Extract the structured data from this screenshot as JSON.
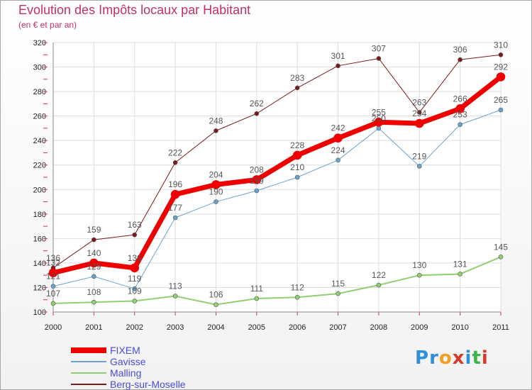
{
  "title": "Evolution des Impôts locaux par Habitant",
  "subtitle": "(en € et par an)",
  "logo": {
    "letters": [
      "P",
      "r",
      "o",
      "x",
      "i",
      "t",
      "i"
    ],
    "colors": [
      "#2f8fd8",
      "#2f8fd8",
      "#f0a020",
      "#d83a2a",
      "#2f8fd8",
      "#3ab54a",
      "#d83a2a"
    ]
  },
  "chart_data": {
    "type": "line",
    "title": "Evolution des Impôts locaux par Habitant",
    "subtitle": "(en € et par an)",
    "xlabel": "",
    "ylabel": "",
    "categories": [
      "2000",
      "2001",
      "2002",
      "2003",
      "2004",
      "2005",
      "2006",
      "2007",
      "2008",
      "2009",
      "2010",
      "2011"
    ],
    "ylim": [
      100,
      320
    ],
    "yticks": [
      100,
      120,
      140,
      160,
      180,
      200,
      220,
      240,
      260,
      280,
      300,
      320
    ],
    "grid": true,
    "legend_position": "bottom-left",
    "series": [
      {
        "name": "Berg-sur-Moselle",
        "color": "#7a1a1a",
        "width": 1,
        "marker": 3,
        "values": [
          136,
          159,
          163,
          222,
          248,
          262,
          283,
          301,
          307,
          263,
          306,
          310
        ]
      },
      {
        "name": "Gavisse",
        "color": "#6aa3cc",
        "width": 1,
        "marker": 3,
        "values": [
          121,
          129,
          119,
          177,
          190,
          199,
          210,
          224,
          250,
          219,
          253,
          265
        ]
      },
      {
        "name": "Malling",
        "color": "#90d070",
        "width": 2,
        "marker": 3,
        "values": [
          107,
          108,
          109,
          113,
          106,
          111,
          112,
          115,
          122,
          130,
          131,
          145
        ]
      },
      {
        "name": "FIXEM",
        "color": "#ee0000",
        "width": 7,
        "marker": 6,
        "values": [
          132,
          140,
          136,
          196,
          204,
          208,
          228,
          242,
          255,
          254,
          266,
          292
        ]
      }
    ],
    "data_labels": {
      "Berg-sur-Moselle": [
        "136",
        "159",
        "163",
        "222",
        "248",
        "262",
        "283",
        "301",
        "307",
        "263",
        "306",
        "310"
      ],
      "Gavisse": [
        "121",
        "129",
        "119",
        "177",
        "190",
        "199",
        "210",
        "224",
        "250",
        "219",
        "253",
        "265"
      ],
      "Malling": [
        "107",
        "108",
        "109",
        "113",
        "106",
        "111",
        "112",
        "115",
        "122",
        "130",
        "131",
        "145"
      ],
      "FIXEM": [
        "132",
        "140",
        "136",
        "196",
        "204",
        "208",
        "228",
        "242",
        "255",
        "254",
        "266",
        "292"
      ]
    },
    "legend": [
      "FIXEM",
      "Gavisse",
      "Malling",
      "Berg-sur-Moselle"
    ]
  }
}
